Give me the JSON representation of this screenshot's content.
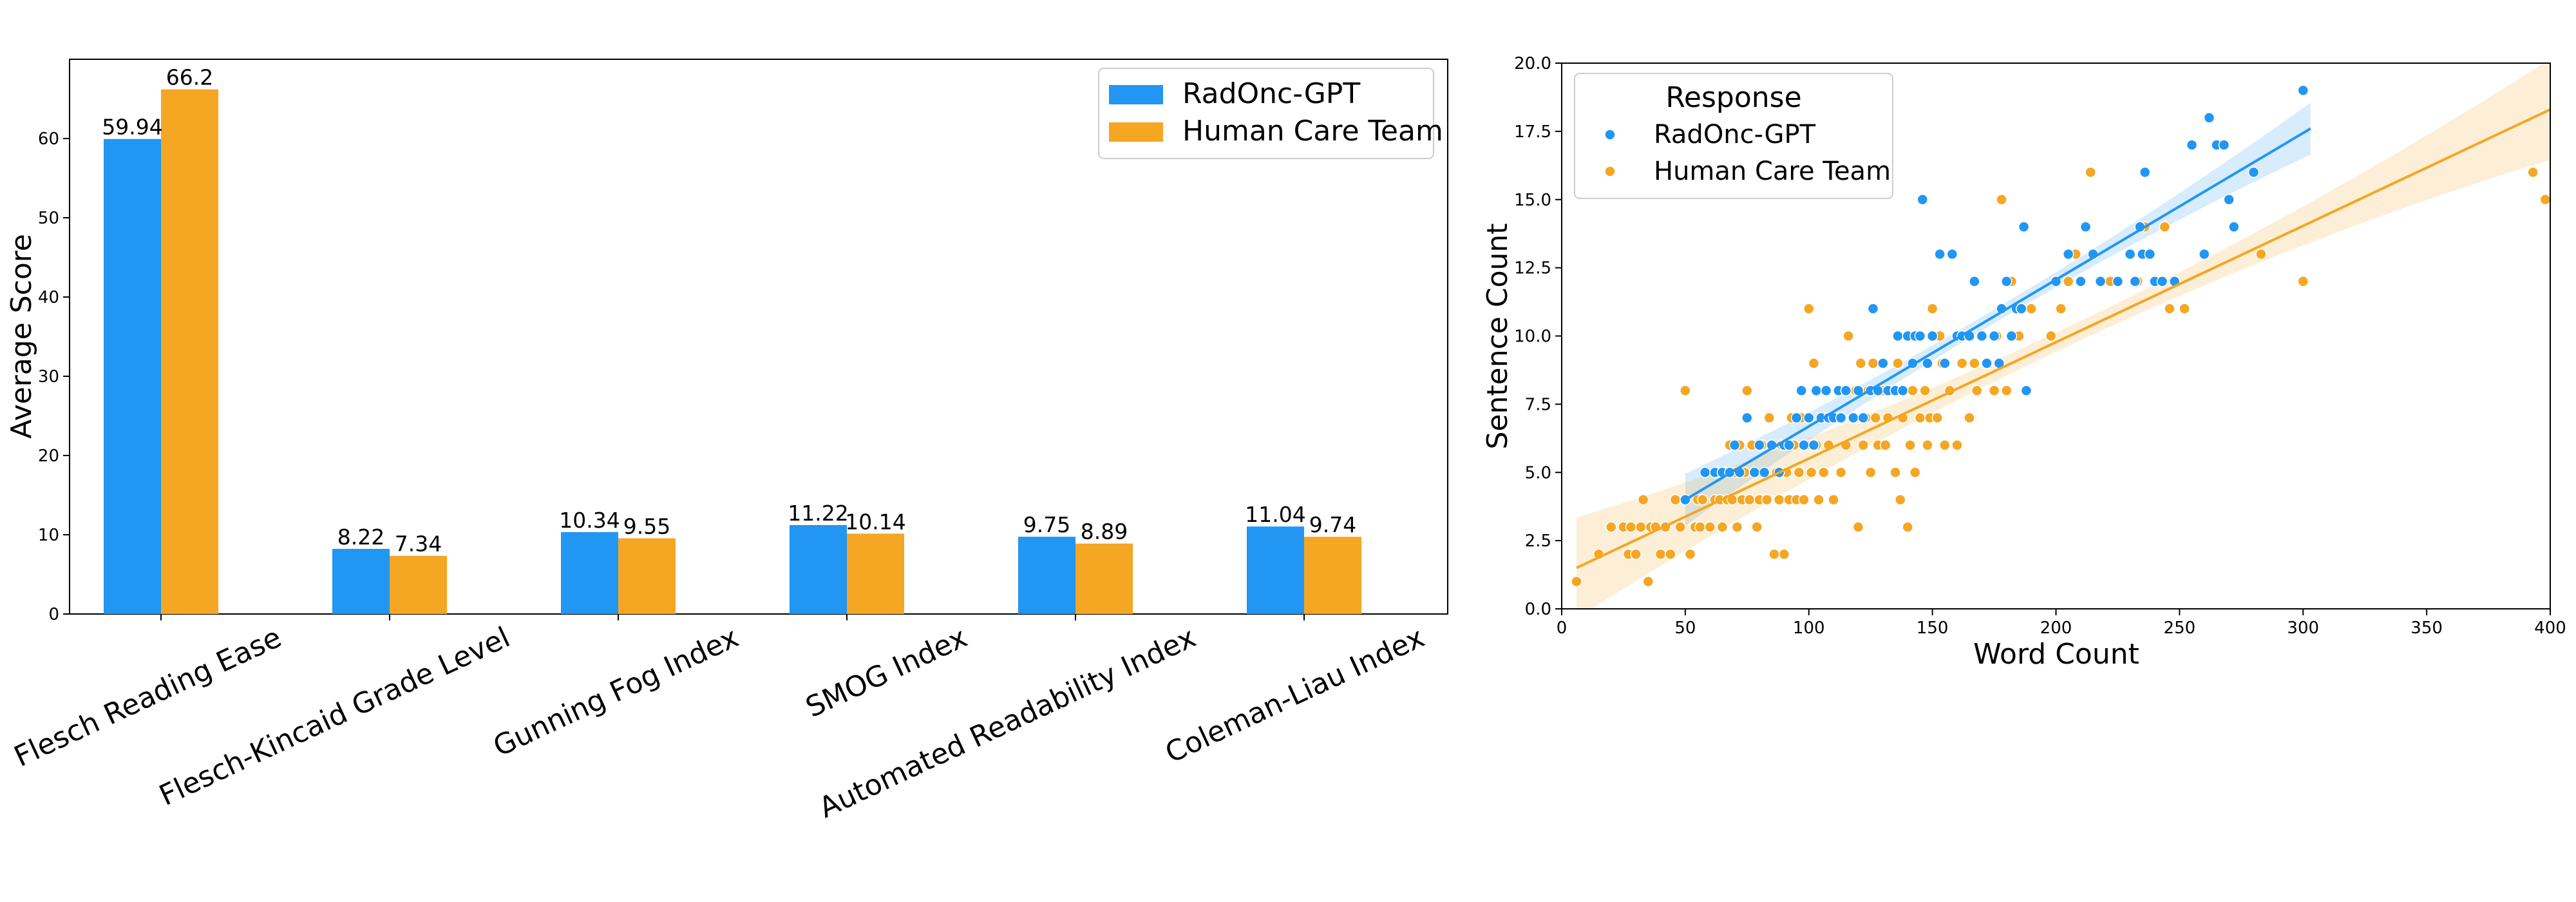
{
  "colors": {
    "gpt": "#2196f3",
    "human": "#f5a623"
  },
  "chart_data": [
    {
      "type": "bar",
      "title": "",
      "xlabel": "",
      "ylabel": "Average Score",
      "ylim": [
        0,
        70
      ],
      "yticks": [
        "0",
        "10",
        "20",
        "30",
        "40",
        "50",
        "60"
      ],
      "categories": [
        "Flesch Reading Ease",
        "Flesch-Kincaid Grade Level",
        "Gunning Fog Index",
        "SMOG Index",
        "Automated Readability Index",
        "Coleman-Liau Index"
      ],
      "series": [
        {
          "name": "RadOnc-GPT",
          "values": [
            59.94,
            8.22,
            10.34,
            11.22,
            9.75,
            11.04
          ],
          "labels": [
            "59.94",
            "8.22",
            "10.34",
            "11.22",
            "9.75",
            "11.04"
          ]
        },
        {
          "name": "Human Care Team",
          "values": [
            66.2,
            7.34,
            9.55,
            10.14,
            8.89,
            9.74
          ],
          "labels": [
            "66.2",
            "7.34",
            "9.55",
            "10.14",
            "8.89",
            "9.74"
          ]
        }
      ],
      "legend": [
        "RadOnc-GPT",
        "Human Care Team"
      ],
      "legend_position": "top-right"
    },
    {
      "type": "scatter",
      "title": "",
      "xlabel": "Word Count",
      "ylabel": "Sentence Count",
      "xlim": [
        0,
        400
      ],
      "ylim": [
        0,
        20
      ],
      "xticks": [
        "0",
        "50",
        "100",
        "150",
        "200",
        "250",
        "300",
        "350",
        "400"
      ],
      "yticks": [
        "0.0",
        "2.5",
        "5.0",
        "7.5",
        "10.0",
        "12.5",
        "15.0",
        "17.5",
        "20.0"
      ],
      "legend_title": "Response",
      "legend": [
        "RadOnc-GPT",
        "Human Care Team"
      ],
      "legend_position": "top-left",
      "series": [
        {
          "name": "RadOnc-GPT",
          "fit": {
            "x": [
              50,
              303
            ],
            "y": [
              4.0,
              17.6
            ]
          },
          "points": [
            [
              50,
              4
            ],
            [
              58,
              5
            ],
            [
              62,
              5
            ],
            [
              65,
              5
            ],
            [
              68,
              5
            ],
            [
              70,
              6
            ],
            [
              72,
              5
            ],
            [
              75,
              7
            ],
            [
              78,
              5
            ],
            [
              80,
              6
            ],
            [
              82,
              5
            ],
            [
              85,
              6
            ],
            [
              88,
              5
            ],
            [
              90,
              6
            ],
            [
              92,
              6
            ],
            [
              95,
              7
            ],
            [
              97,
              8
            ],
            [
              98,
              6
            ],
            [
              100,
              7
            ],
            [
              102,
              6
            ],
            [
              103,
              8
            ],
            [
              105,
              7
            ],
            [
              107,
              8
            ],
            [
              108,
              7
            ],
            [
              110,
              7
            ],
            [
              112,
              8
            ],
            [
              113,
              7
            ],
            [
              115,
              8
            ],
            [
              118,
              7
            ],
            [
              120,
              8
            ],
            [
              122,
              7
            ],
            [
              125,
              8
            ],
            [
              126,
              11
            ],
            [
              128,
              8
            ],
            [
              130,
              9
            ],
            [
              132,
              8
            ],
            [
              135,
              8
            ],
            [
              136,
              10
            ],
            [
              138,
              8
            ],
            [
              140,
              10
            ],
            [
              142,
              9
            ],
            [
              143,
              10
            ],
            [
              145,
              10
            ],
            [
              146,
              15
            ],
            [
              148,
              9
            ],
            [
              150,
              10
            ],
            [
              153,
              13
            ],
            [
              155,
              9
            ],
            [
              158,
              13
            ],
            [
              160,
              10
            ],
            [
              162,
              10
            ],
            [
              165,
              10
            ],
            [
              167,
              12
            ],
            [
              170,
              10
            ],
            [
              172,
              9
            ],
            [
              175,
              10
            ],
            [
              177,
              9
            ],
            [
              178,
              11
            ],
            [
              180,
              12
            ],
            [
              182,
              10
            ],
            [
              184,
              11
            ],
            [
              186,
              11
            ],
            [
              187,
              14
            ],
            [
              188,
              8
            ],
            [
              200,
              12
            ],
            [
              205,
              13
            ],
            [
              210,
              12
            ],
            [
              212,
              14
            ],
            [
              215,
              13
            ],
            [
              218,
              12
            ],
            [
              225,
              12
            ],
            [
              230,
              13
            ],
            [
              232,
              12
            ],
            [
              234,
              14
            ],
            [
              235,
              13
            ],
            [
              236,
              16
            ],
            [
              238,
              13
            ],
            [
              240,
              12
            ],
            [
              243,
              12
            ],
            [
              248,
              12
            ],
            [
              255,
              17
            ],
            [
              260,
              13
            ],
            [
              262,
              18
            ],
            [
              265,
              17
            ],
            [
              268,
              17
            ],
            [
              270,
              15
            ],
            [
              272,
              14
            ],
            [
              280,
              16
            ],
            [
              300,
              19
            ]
          ]
        },
        {
          "name": "Human Care Team",
          "fit": {
            "x": [
              6,
              400
            ],
            "y": [
              1.5,
              18.3
            ]
          },
          "points": [
            [
              6,
              1
            ],
            [
              15,
              2
            ],
            [
              20,
              3
            ],
            [
              25,
              3
            ],
            [
              27,
              2
            ],
            [
              28,
              3
            ],
            [
              30,
              2
            ],
            [
              32,
              3
            ],
            [
              33,
              4
            ],
            [
              35,
              1
            ],
            [
              36,
              3
            ],
            [
              38,
              3
            ],
            [
              40,
              2
            ],
            [
              42,
              3
            ],
            [
              44,
              2
            ],
            [
              46,
              4
            ],
            [
              48,
              3
            ],
            [
              50,
              8
            ],
            [
              52,
              2
            ],
            [
              54,
              3
            ],
            [
              55,
              4
            ],
            [
              56,
              3
            ],
            [
              57,
              4
            ],
            [
              58,
              5
            ],
            [
              60,
              3
            ],
            [
              62,
              4
            ],
            [
              63,
              5
            ],
            [
              64,
              4
            ],
            [
              65,
              3
            ],
            [
              66,
              5
            ],
            [
              67,
              4
            ],
            [
              68,
              6
            ],
            [
              69,
              4
            ],
            [
              70,
              5
            ],
            [
              71,
              3
            ],
            [
              72,
              6
            ],
            [
              73,
              4
            ],
            [
              74,
              5
            ],
            [
              75,
              8
            ],
            [
              76,
              4
            ],
            [
              77,
              6
            ],
            [
              78,
              5
            ],
            [
              79,
              3
            ],
            [
              80,
              4
            ],
            [
              81,
              6
            ],
            [
              82,
              5
            ],
            [
              83,
              4
            ],
            [
              84,
              7
            ],
            [
              85,
              6
            ],
            [
              86,
              2
            ],
            [
              87,
              5
            ],
            [
              88,
              4
            ],
            [
              89,
              6
            ],
            [
              90,
              2
            ],
            [
              91,
              5
            ],
            [
              92,
              4
            ],
            [
              93,
              7
            ],
            [
              94,
              6
            ],
            [
              95,
              4
            ],
            [
              96,
              5
            ],
            [
              97,
              7
            ],
            [
              98,
              4
            ],
            [
              99,
              6
            ],
            [
              100,
              11
            ],
            [
              101,
              5
            ],
            [
              102,
              9
            ],
            [
              103,
              6
            ],
            [
              104,
              4
            ],
            [
              105,
              7
            ],
            [
              106,
              5
            ],
            [
              107,
              8
            ],
            [
              108,
              6
            ],
            [
              109,
              7
            ],
            [
              110,
              4
            ],
            [
              112,
              7
            ],
            [
              113,
              5
            ],
            [
              114,
              8
            ],
            [
              115,
              6
            ],
            [
              116,
              10
            ],
            [
              118,
              7
            ],
            [
              119,
              8
            ],
            [
              120,
              3
            ],
            [
              121,
              9
            ],
            [
              122,
              6
            ],
            [
              123,
              7
            ],
            [
              124,
              8
            ],
            [
              125,
              5
            ],
            [
              126,
              9
            ],
            [
              127,
              7
            ],
            [
              128,
              6
            ],
            [
              130,
              8
            ],
            [
              131,
              6
            ],
            [
              132,
              7
            ],
            [
              134,
              8
            ],
            [
              135,
              5
            ],
            [
              136,
              9
            ],
            [
              137,
              4
            ],
            [
              138,
              7
            ],
            [
              140,
              3
            ],
            [
              141,
              6
            ],
            [
              142,
              8
            ],
            [
              143,
              5
            ],
            [
              145,
              7
            ],
            [
              147,
              8
            ],
            [
              148,
              6
            ],
            [
              149,
              7
            ],
            [
              150,
              11
            ],
            [
              152,
              7
            ],
            [
              153,
              10
            ],
            [
              154,
              9
            ],
            [
              155,
              6
            ],
            [
              157,
              8
            ],
            [
              160,
              6
            ],
            [
              162,
              9
            ],
            [
              164,
              10
            ],
            [
              165,
              7
            ],
            [
              167,
              9
            ],
            [
              168,
              8
            ],
            [
              170,
              10
            ],
            [
              172,
              9
            ],
            [
              175,
              8
            ],
            [
              176,
              10
            ],
            [
              178,
              15
            ],
            [
              180,
              8
            ],
            [
              182,
              12
            ],
            [
              185,
              10
            ],
            [
              186,
              11
            ],
            [
              190,
              11
            ],
            [
              198,
              10
            ],
            [
              202,
              11
            ],
            [
              205,
              12
            ],
            [
              208,
              13
            ],
            [
              212,
              14
            ],
            [
              214,
              16
            ],
            [
              218,
              12
            ],
            [
              222,
              12
            ],
            [
              233,
              12
            ],
            [
              236,
              14
            ],
            [
              244,
              14
            ],
            [
              246,
              11
            ],
            [
              252,
              11
            ],
            [
              260,
              13
            ],
            [
              283,
              13
            ],
            [
              300,
              12
            ],
            [
              393,
              16
            ],
            [
              398,
              15
            ]
          ]
        }
      ]
    }
  ]
}
